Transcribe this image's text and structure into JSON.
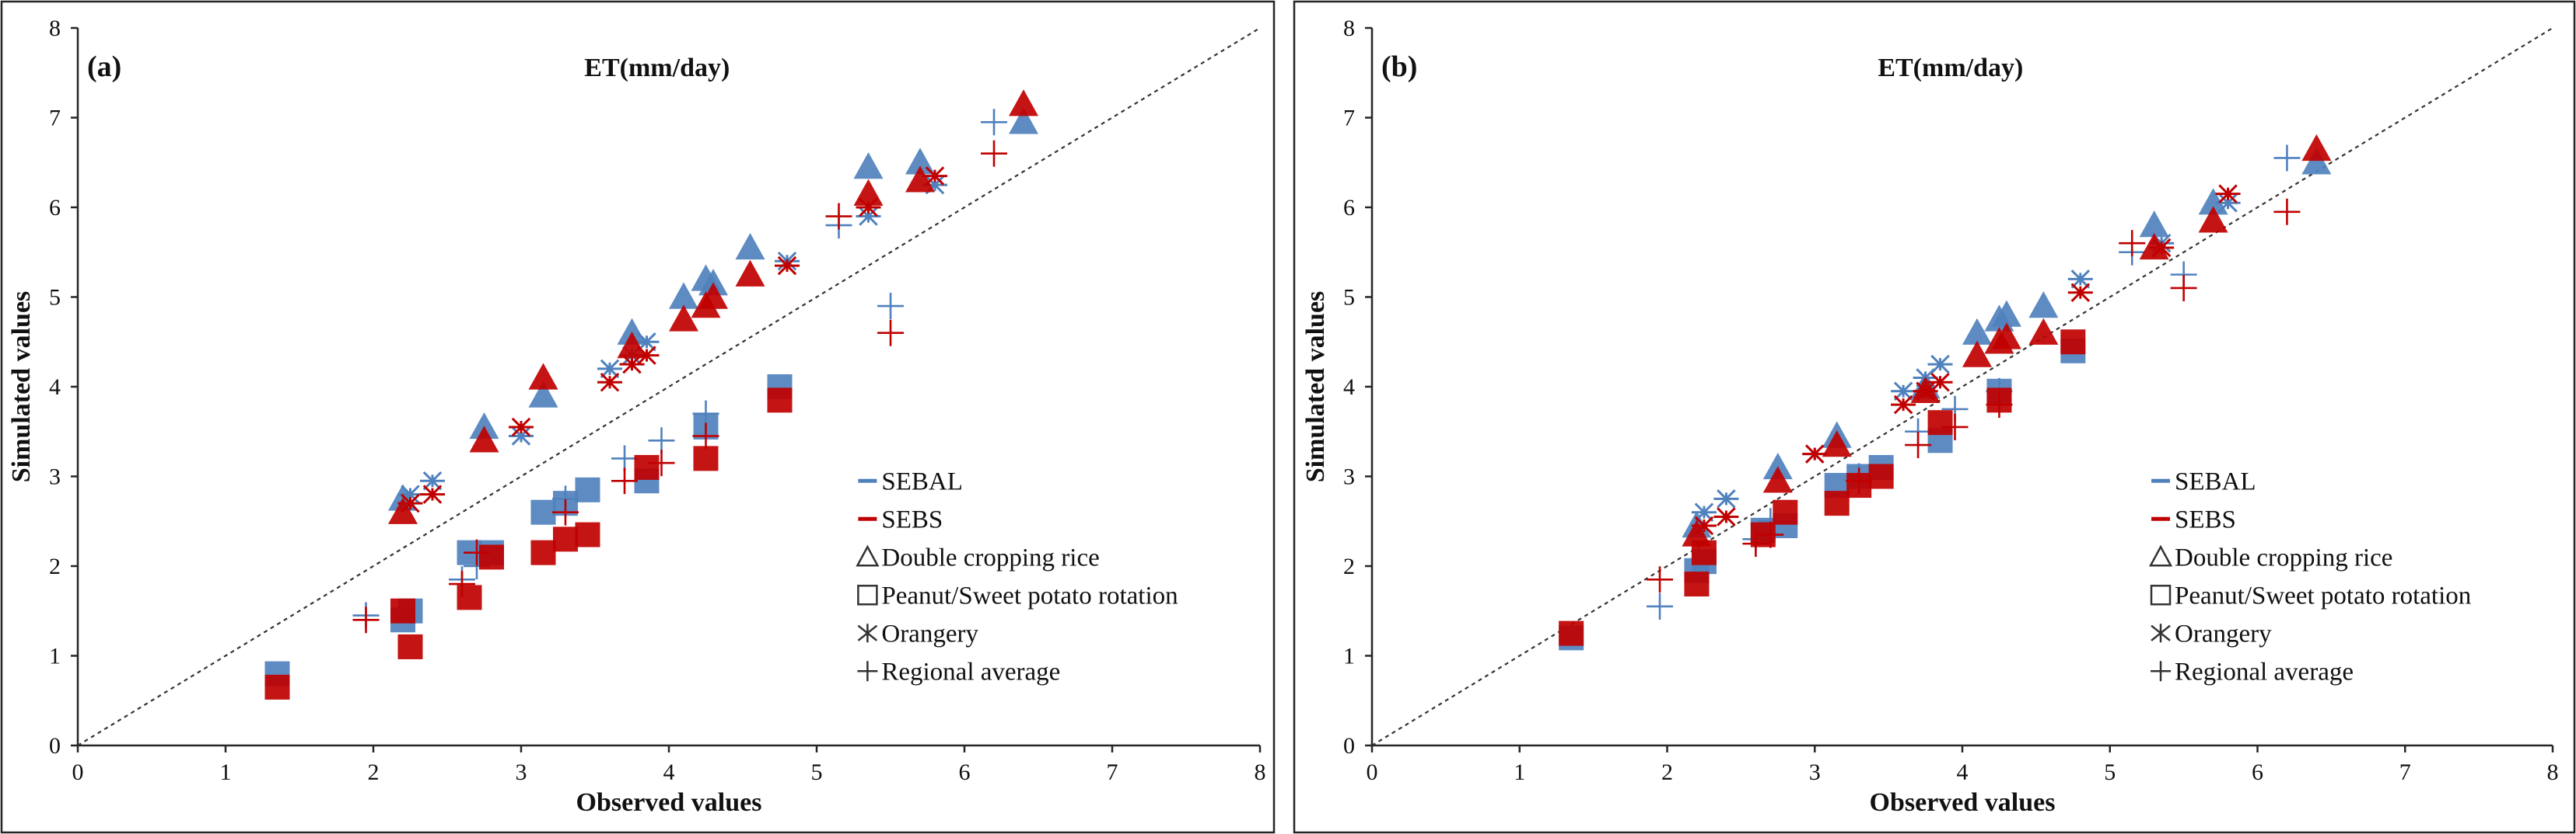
{
  "colors": {
    "SEBAL": "#4f81bd",
    "SEBS": "#c00000",
    "neutral": "#333333"
  },
  "legend": [
    {
      "key": "SEBAL",
      "label": "SEBAL",
      "symbol": "dash",
      "color": "SEBAL"
    },
    {
      "key": "SEBS",
      "label": "SEBS",
      "symbol": "dash",
      "color": "SEBS"
    },
    {
      "key": "rice",
      "label": "Double cropping rice",
      "symbol": "triangle-open",
      "color": "neutral"
    },
    {
      "key": "peanut",
      "label": "Peanut/Sweet potato rotation",
      "symbol": "square-open",
      "color": "neutral"
    },
    {
      "key": "orangery",
      "label": "Orangery",
      "symbol": "asterisk",
      "color": "neutral"
    },
    {
      "key": "regional",
      "label": "Regional average",
      "symbol": "plus",
      "color": "neutral"
    }
  ],
  "chart_data": [
    {
      "panel": "(a)",
      "type": "scatter",
      "title": "ET(mm/day)",
      "xlabel": "Observed values",
      "ylabel": "Simulated values",
      "xlim": [
        0,
        8
      ],
      "ylim": [
        0,
        8
      ],
      "xticks": [
        "0",
        "1",
        "2",
        "3",
        "4",
        "5",
        "6",
        "7",
        "8"
      ],
      "yticks": [
        "0",
        "1",
        "2",
        "3",
        "4",
        "5",
        "6",
        "7",
        "8"
      ],
      "reference_line": "1:1",
      "series": [
        {
          "name": "SEBAL Double cropping rice",
          "model": "SEBAL",
          "marker": "triangle",
          "x": [
            2.2,
            2.75,
            3.15,
            3.75,
            4.1,
            4.25,
            4.3,
            4.55,
            5.35,
            5.7,
            6.4
          ],
          "y": [
            2.75,
            3.55,
            3.9,
            4.6,
            5.0,
            5.2,
            5.15,
            5.55,
            6.45,
            6.5,
            6.95
          ]
        },
        {
          "name": "SEBS Double cropping rice",
          "model": "SEBS",
          "marker": "triangle",
          "x": [
            2.2,
            2.75,
            3.15,
            3.75,
            4.1,
            4.25,
            4.3,
            4.55,
            5.35,
            5.7,
            6.4
          ],
          "y": [
            2.6,
            3.4,
            4.1,
            4.45,
            4.75,
            4.9,
            5.0,
            5.25,
            6.15,
            6.3,
            7.15
          ]
        },
        {
          "name": "SEBAL Peanut/Sweet potato rotation",
          "model": "SEBAL",
          "marker": "square",
          "x": [
            1.35,
            2.2,
            2.25,
            2.65,
            2.8,
            3.15,
            3.3,
            3.45,
            3.85,
            4.25,
            4.75
          ],
          "y": [
            0.8,
            1.4,
            1.5,
            2.15,
            2.15,
            2.6,
            2.7,
            2.85,
            2.95,
            3.55,
            4.0
          ]
        },
        {
          "name": "SEBS Peanut/Sweet potato rotation",
          "model": "SEBS",
          "marker": "square",
          "x": [
            1.35,
            2.2,
            2.25,
            2.65,
            2.8,
            3.15,
            3.3,
            3.45,
            3.85,
            4.25,
            4.75
          ],
          "y": [
            0.65,
            1.5,
            1.1,
            1.65,
            2.1,
            2.15,
            2.3,
            2.35,
            3.1,
            3.2,
            3.85
          ]
        },
        {
          "name": "SEBAL Orangery",
          "model": "SEBAL",
          "marker": "asterisk",
          "x": [
            2.25,
            2.4,
            3.0,
            3.6,
            3.75,
            3.85,
            4.8,
            5.35,
            5.8
          ],
          "y": [
            2.8,
            2.95,
            3.45,
            4.2,
            4.35,
            4.5,
            5.4,
            5.9,
            6.25
          ]
        },
        {
          "name": "SEBS Orangery",
          "model": "SEBS",
          "marker": "asterisk",
          "x": [
            2.25,
            2.4,
            3.0,
            3.6,
            3.75,
            3.85,
            4.8,
            5.35,
            5.8
          ],
          "y": [
            2.7,
            2.8,
            3.55,
            4.05,
            4.25,
            4.35,
            5.35,
            6.0,
            6.35
          ]
        },
        {
          "name": "SEBAL Regional average",
          "model": "SEBAL",
          "marker": "plus",
          "x": [
            1.95,
            2.6,
            2.7,
            3.3,
            3.7,
            3.95,
            4.25,
            5.15,
            5.5,
            6.2
          ],
          "y": [
            1.45,
            1.85,
            2.0,
            2.75,
            3.2,
            3.4,
            3.7,
            5.8,
            4.9,
            6.95
          ]
        },
        {
          "name": "SEBS Regional average",
          "model": "SEBS",
          "marker": "plus",
          "x": [
            1.95,
            2.6,
            2.7,
            3.3,
            3.7,
            3.95,
            4.25,
            5.15,
            5.5,
            6.2
          ],
          "y": [
            1.4,
            1.8,
            2.15,
            2.6,
            2.95,
            3.15,
            3.45,
            5.9,
            4.6,
            6.6
          ]
        }
      ]
    },
    {
      "panel": "(b)",
      "type": "scatter",
      "title": "ET(mm/day)",
      "xlabel": "Observed values",
      "ylabel": "Simulated values",
      "xlim": [
        0,
        8
      ],
      "ylim": [
        0,
        8
      ],
      "xticks": [
        "0",
        "1",
        "2",
        "3",
        "4",
        "5",
        "6",
        "7",
        "8"
      ],
      "yticks": [
        "0",
        "1",
        "2",
        "3",
        "4",
        "5",
        "6",
        "7",
        "8"
      ],
      "reference_line": "1:1",
      "series": [
        {
          "name": "SEBAL Double cropping rice",
          "model": "SEBAL",
          "marker": "triangle",
          "x": [
            2.2,
            2.75,
            3.15,
            3.75,
            4.1,
            4.25,
            4.3,
            4.55,
            5.3,
            5.7,
            6.4
          ],
          "y": [
            2.45,
            3.1,
            3.45,
            4.0,
            4.6,
            4.75,
            4.8,
            4.9,
            5.8,
            6.05,
            6.5
          ]
        },
        {
          "name": "SEBS Double cropping rice",
          "model": "SEBS",
          "marker": "triangle",
          "x": [
            2.2,
            2.75,
            3.15,
            3.75,
            4.1,
            4.25,
            4.3,
            4.55,
            5.3,
            5.7,
            6.4
          ],
          "y": [
            2.35,
            2.95,
            3.35,
            3.95,
            4.35,
            4.5,
            4.55,
            4.6,
            5.55,
            5.85,
            6.65
          ]
        },
        {
          "name": "SEBAL Peanut/Sweet potato rotation",
          "model": "SEBAL",
          "marker": "square",
          "x": [
            1.35,
            2.2,
            2.25,
            2.65,
            2.8,
            3.15,
            3.3,
            3.45,
            3.85,
            4.25,
            4.75
          ],
          "y": [
            1.2,
            1.95,
            2.05,
            2.4,
            2.45,
            2.9,
            3.0,
            3.1,
            3.4,
            3.95,
            4.4
          ]
        },
        {
          "name": "SEBS Peanut/Sweet potato rotation",
          "model": "SEBS",
          "marker": "square",
          "x": [
            1.35,
            2.2,
            2.25,
            2.65,
            2.8,
            3.15,
            3.3,
            3.45,
            3.85,
            4.25,
            4.75
          ],
          "y": [
            1.25,
            1.8,
            2.15,
            2.35,
            2.6,
            2.7,
            2.9,
            3.0,
            3.6,
            3.85,
            4.5
          ]
        },
        {
          "name": "SEBAL Orangery",
          "model": "SEBAL",
          "marker": "asterisk",
          "x": [
            2.25,
            2.4,
            3.0,
            3.6,
            3.75,
            3.85,
            4.8,
            5.35,
            5.8
          ],
          "y": [
            2.6,
            2.75,
            3.25,
            3.95,
            4.1,
            4.25,
            5.2,
            5.6,
            6.05
          ]
        },
        {
          "name": "SEBS Orangery",
          "model": "SEBS",
          "marker": "asterisk",
          "x": [
            2.25,
            2.4,
            3.0,
            3.6,
            3.75,
            3.85,
            4.8,
            5.35,
            5.8
          ],
          "y": [
            2.45,
            2.55,
            3.25,
            3.8,
            3.95,
            4.05,
            5.05,
            5.55,
            6.15
          ]
        },
        {
          "name": "SEBAL Regional average",
          "model": "SEBAL",
          "marker": "plus",
          "x": [
            1.95,
            2.6,
            2.7,
            3.3,
            3.7,
            3.95,
            4.25,
            5.15,
            5.5,
            6.2
          ],
          "y": [
            1.55,
            2.3,
            2.5,
            3.0,
            3.5,
            3.75,
            3.95,
            5.5,
            5.25,
            6.55
          ]
        },
        {
          "name": "SEBS Regional average",
          "model": "SEBS",
          "marker": "plus",
          "x": [
            1.95,
            2.6,
            2.7,
            3.3,
            3.7,
            3.95,
            4.25,
            5.15,
            5.5,
            6.2
          ],
          "y": [
            1.85,
            2.25,
            2.35,
            2.95,
            3.35,
            3.55,
            3.8,
            5.6,
            5.1,
            5.95
          ]
        }
      ]
    }
  ]
}
